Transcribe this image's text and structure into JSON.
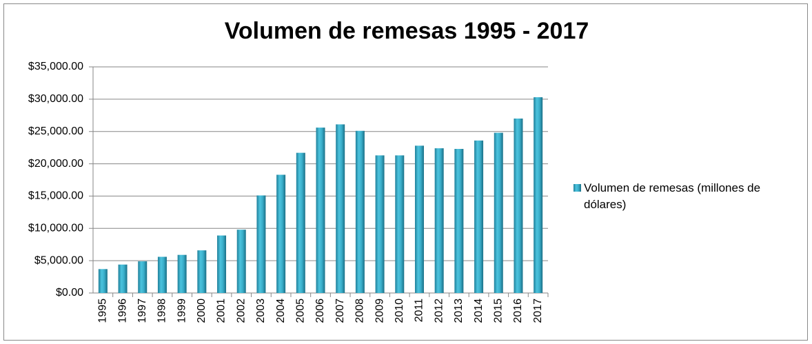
{
  "chart_data": {
    "type": "bar",
    "title": "Volumen de remesas 1995 - 2017",
    "categories": [
      "1995",
      "1996",
      "1997",
      "1998",
      "1999",
      "2000",
      "2001",
      "2002",
      "2003",
      "2004",
      "2005",
      "2006",
      "2007",
      "2008",
      "2009",
      "2010",
      "2011",
      "2012",
      "2013",
      "2014",
      "2015",
      "2016",
      "2017"
    ],
    "series": [
      {
        "name": "Volumen de remesas (millones de dólares)",
        "color": "#3fb0cc",
        "values": [
          3700,
          4400,
          4900,
          5600,
          5900,
          6600,
          8900,
          9800,
          15100,
          18300,
          21700,
          25600,
          26100,
          25100,
          21300,
          21300,
          22800,
          22400,
          22300,
          23600,
          24800,
          27000,
          30300
        ]
      }
    ],
    "ylim": [
      0,
      35000
    ],
    "yticks": [
      {
        "value": 0,
        "label": "$0.00"
      },
      {
        "value": 5000,
        "label": "$5,000.00"
      },
      {
        "value": 10000,
        "label": "$10,000.00"
      },
      {
        "value": 15000,
        "label": "$15,000.00"
      },
      {
        "value": 20000,
        "label": "$20,000.00"
      },
      {
        "value": 25000,
        "label": "$25,000.00"
      },
      {
        "value": 30000,
        "label": "$30,000.00"
      },
      {
        "value": 35000,
        "label": "$35,000.00"
      }
    ],
    "grid": true,
    "legend": "right"
  }
}
